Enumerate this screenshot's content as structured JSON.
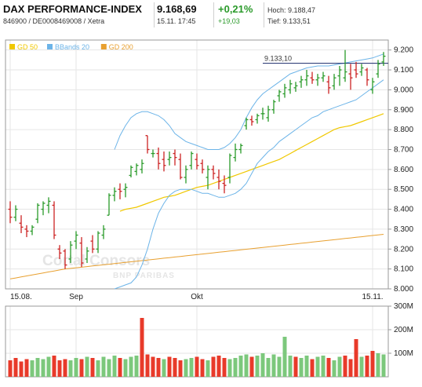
{
  "header": {
    "title": "DAX PERFORMANCE-INDEX",
    "subtitle": "846900 / DE0008469008 / Xetra",
    "price": "9.168,69",
    "datetime": "15.11. 17:45",
    "change_pct": "+0,21%",
    "change_abs": "+19,03",
    "high_label": "Hoch: 9.188,47",
    "low_label": "Tief: 9.133,51"
  },
  "colors": {
    "gd50": "#f0c800",
    "bbands": "#6cb4e8",
    "gd200": "#e8a030",
    "up": "#2a9a2a",
    "down": "#cc2222",
    "vol_up": "#7cc87c",
    "vol_down": "#e83a2a",
    "grid": "#e6e6e6",
    "border": "#9a9a9a",
    "change": "#2a9a2a"
  },
  "watermark": {
    "line1": "Cortal Consors",
    "line2": "BNP PARIBAS"
  },
  "chart_data": [
    {
      "type": "candlestick",
      "legend": [
        {
          "name": "GD 50",
          "color": "#f0c800"
        },
        {
          "name": "BBands 20",
          "color": "#6cb4e8"
        },
        {
          "name": "GD 200",
          "color": "#e8a030"
        }
      ],
      "legend_position": "top-left",
      "reference_line": {
        "label": "9.133,10",
        "value": 9133.1
      },
      "ylim": [
        8000,
        9250
      ],
      "yticks": [
        8000,
        8100,
        8200,
        8300,
        8400,
        8500,
        8600,
        8700,
        8800,
        8900,
        9000,
        9100,
        9200
      ],
      "ytick_labels": [
        "8.000",
        "8.100",
        "8.200",
        "8.300",
        "8.400",
        "8.500",
        "8.600",
        "8.700",
        "8.800",
        "8.900",
        "9.000",
        "9.100",
        "9.200"
      ],
      "xtick_labels": [
        {
          "label": "15.08.",
          "index": 0
        },
        {
          "label": "Sep",
          "index": 12
        },
        {
          "label": "Okt",
          "index": 34
        },
        {
          "label": "15.11.",
          "index": 66
        }
      ],
      "grid": true,
      "ohlc": [
        [
          8400,
          8440,
          8330,
          8360
        ],
        [
          8360,
          8420,
          8340,
          8400
        ],
        [
          8330,
          8370,
          8280,
          8310
        ],
        [
          8300,
          8320,
          8260,
          8290
        ],
        [
          8290,
          8320,
          8270,
          8310
        ],
        [
          8350,
          8430,
          8330,
          8420
        ],
        [
          8400,
          8440,
          8370,
          8430
        ],
        [
          8420,
          8460,
          8380,
          8440
        ],
        [
          8420,
          8440,
          8250,
          8270
        ],
        [
          8200,
          8220,
          8150,
          8180
        ],
        [
          8190,
          8200,
          8100,
          8120
        ],
        [
          8150,
          8240,
          8130,
          8220
        ],
        [
          8240,
          8290,
          8200,
          8270
        ],
        [
          8230,
          8260,
          8110,
          8130
        ],
        [
          8150,
          8210,
          8130,
          8190
        ],
        [
          8240,
          8270,
          8180,
          8200
        ],
        [
          8200,
          8290,
          8180,
          8280
        ],
        [
          8270,
          8320,
          8250,
          8300
        ],
        [
          8370,
          8480,
          8370,
          8470
        ],
        [
          8470,
          8510,
          8440,
          8490
        ],
        [
          8500,
          8530,
          8450,
          8490
        ],
        [
          8500,
          8530,
          8460,
          8510
        ],
        [
          8570,
          8620,
          8560,
          8610
        ],
        [
          8590,
          8630,
          8570,
          8620
        ],
        [
          8600,
          8650,
          8580,
          8630
        ],
        [
          8770,
          8770,
          8680,
          8700
        ],
        [
          8680,
          8700,
          8660,
          8680
        ],
        [
          8680,
          8710,
          8600,
          8630
        ],
        [
          8650,
          8690,
          8590,
          8620
        ],
        [
          8650,
          8690,
          8620,
          8660
        ],
        [
          8680,
          8700,
          8620,
          8660
        ],
        [
          8650,
          8680,
          8550,
          8560
        ],
        [
          8560,
          8620,
          8530,
          8600
        ],
        [
          8620,
          8690,
          8600,
          8680
        ],
        [
          8650,
          8680,
          8600,
          8620
        ],
        [
          8630,
          8650,
          8580,
          8600
        ],
        [
          8560,
          8620,
          8500,
          8600
        ],
        [
          8600,
          8620,
          8550,
          8580
        ],
        [
          8560,
          8600,
          8500,
          8540
        ],
        [
          8530,
          8570,
          8480,
          8520
        ],
        [
          8560,
          8680,
          8530,
          8670
        ],
        [
          8660,
          8730,
          8640,
          8700
        ],
        [
          8700,
          8730,
          8680,
          8720
        ],
        [
          8820,
          8860,
          8800,
          8850
        ],
        [
          8850,
          8870,
          8820,
          8840
        ],
        [
          8850,
          8880,
          8830,
          8870
        ],
        [
          8880,
          8910,
          8850,
          8880
        ],
        [
          8860,
          8920,
          8840,
          8900
        ],
        [
          8900,
          8950,
          8880,
          8940
        ],
        [
          8970,
          9000,
          8940,
          8990
        ],
        [
          8980,
          9030,
          8960,
          9010
        ],
        [
          9000,
          9050,
          8980,
          9030
        ],
        [
          9010,
          9040,
          8990,
          9020
        ],
        [
          9040,
          9070,
          9010,
          9050
        ],
        [
          9050,
          9100,
          9020,
          9070
        ],
        [
          9060,
          9090,
          9030,
          9050
        ],
        [
          9050,
          9080,
          9020,
          9060
        ],
        [
          9060,
          9090,
          9040,
          9070
        ],
        [
          9040,
          9070,
          8980,
          9010
        ],
        [
          9020,
          9080,
          9000,
          9060
        ],
        [
          9070,
          9120,
          9020,
          9100
        ],
        [
          9060,
          9200,
          9040,
          9090
        ],
        [
          9080,
          9130,
          9000,
          9060
        ],
        [
          9100,
          9140,
          9060,
          9080
        ],
        [
          9090,
          9130,
          9070,
          9110
        ],
        [
          9100,
          9110,
          9020,
          9050
        ],
        [
          9000,
          9060,
          8980,
          9040
        ],
        [
          9080,
          9150,
          9060,
          9130
        ],
        [
          9140,
          9190,
          9120,
          9168.69
        ]
      ],
      "gd50": [
        null,
        null,
        null,
        null,
        null,
        null,
        null,
        null,
        null,
        null,
        null,
        null,
        null,
        null,
        null,
        null,
        null,
        null,
        null,
        null,
        8390,
        8400,
        8405,
        8410,
        8420,
        8430,
        8440,
        8450,
        8460,
        8465,
        8470,
        8480,
        8490,
        8500,
        8510,
        8515,
        8520,
        8530,
        8540,
        8550,
        8560,
        8570,
        8580,
        8590,
        8600,
        8610,
        8620,
        8630,
        8640,
        8650,
        8665,
        8680,
        8695,
        8710,
        8725,
        8740,
        8755,
        8770,
        8785,
        8800,
        8810,
        8815,
        8820,
        8830,
        8840,
        8850,
        8860,
        8870,
        8880
      ],
      "bb_upper": [
        null,
        null,
        null,
        null,
        null,
        null,
        null,
        null,
        null,
        null,
        null,
        null,
        null,
        null,
        null,
        null,
        null,
        null,
        null,
        8700,
        8770,
        8820,
        8860,
        8880,
        8890,
        8890,
        8880,
        8870,
        8850,
        8820,
        8780,
        8760,
        8740,
        8730,
        8720,
        8710,
        8700,
        8700,
        8700,
        8710,
        8730,
        8760,
        8800,
        8860,
        8910,
        8950,
        8980,
        9000,
        9020,
        9040,
        9060,
        9080,
        9090,
        9100,
        9110,
        9115,
        9120,
        9120,
        9120,
        9125,
        9130,
        9135,
        9140,
        9145,
        9150,
        9155,
        9160,
        9170,
        9180
      ],
      "bb_lower": [
        null,
        null,
        null,
        null,
        null,
        null,
        null,
        null,
        null,
        null,
        null,
        null,
        null,
        null,
        null,
        null,
        null,
        null,
        null,
        8000,
        8010,
        8020,
        8030,
        8060,
        8120,
        8200,
        8300,
        8380,
        8430,
        8470,
        8490,
        8500,
        8500,
        8500,
        8490,
        8480,
        8480,
        8470,
        8460,
        8460,
        8470,
        8480,
        8500,
        8530,
        8580,
        8630,
        8660,
        8690,
        8710,
        8740,
        8760,
        8780,
        8800,
        8820,
        8840,
        8860,
        8870,
        8890,
        8900,
        8910,
        8920,
        8930,
        8940,
        8950,
        8970,
        8990,
        9010,
        9030,
        9050
      ],
      "gd200": [
        8050,
        8055,
        8060,
        8065,
        8070,
        8075,
        8080,
        8085,
        8090,
        8095,
        8100,
        8103,
        8106,
        8109,
        8112,
        8115,
        8118,
        8121,
        8124,
        8127,
        8130,
        8133,
        8136,
        8139,
        8142,
        8145,
        8148,
        8151,
        8154,
        8157,
        8160,
        8163,
        8166,
        8169,
        8172,
        8175,
        8178,
        8181,
        8184,
        8187,
        8190,
        8193,
        8196,
        8199,
        8202,
        8205,
        8208,
        8211,
        8214,
        8217,
        8220,
        8223,
        8226,
        8229,
        8232,
        8235,
        8238,
        8241,
        8244,
        8247,
        8250,
        8253,
        8256,
        8259,
        8262,
        8265,
        8268,
        8271,
        8274
      ]
    },
    {
      "type": "bar",
      "title": "",
      "ylim": [
        0,
        300
      ],
      "yticks": [
        100,
        200,
        300
      ],
      "ytick_labels": [
        "100M",
        "200M",
        "300M"
      ],
      "unit": "M",
      "values": [
        70,
        80,
        65,
        75,
        70,
        80,
        75,
        85,
        90,
        70,
        75,
        70,
        80,
        75,
        85,
        80,
        70,
        85,
        75,
        90,
        80,
        75,
        85,
        90,
        250,
        95,
        85,
        80,
        75,
        85,
        80,
        70,
        75,
        80,
        85,
        75,
        70,
        85,
        90,
        80,
        75,
        80,
        90,
        95,
        85,
        90,
        100,
        80,
        95,
        85,
        170,
        90,
        85,
        80,
        90,
        75,
        85,
        90,
        80,
        70,
        85,
        90,
        75,
        160,
        85,
        90,
        110,
        100,
        95
      ],
      "direction": [
        "d",
        "d",
        "d",
        "d",
        "u",
        "u",
        "u",
        "u",
        "d",
        "d",
        "d",
        "u",
        "u",
        "d",
        "u",
        "d",
        "u",
        "u",
        "u",
        "u",
        "d",
        "u",
        "u",
        "u",
        "d",
        "d",
        "d",
        "d",
        "u",
        "d",
        "d",
        "d",
        "u",
        "u",
        "d",
        "d",
        "u",
        "d",
        "d",
        "d",
        "u",
        "u",
        "u",
        "u",
        "d",
        "u",
        "u",
        "u",
        "u",
        "u",
        "u",
        "u",
        "d",
        "u",
        "u",
        "d",
        "u",
        "u",
        "d",
        "u",
        "u",
        "d",
        "d",
        "d",
        "u",
        "d",
        "d",
        "u",
        "u"
      ]
    }
  ]
}
